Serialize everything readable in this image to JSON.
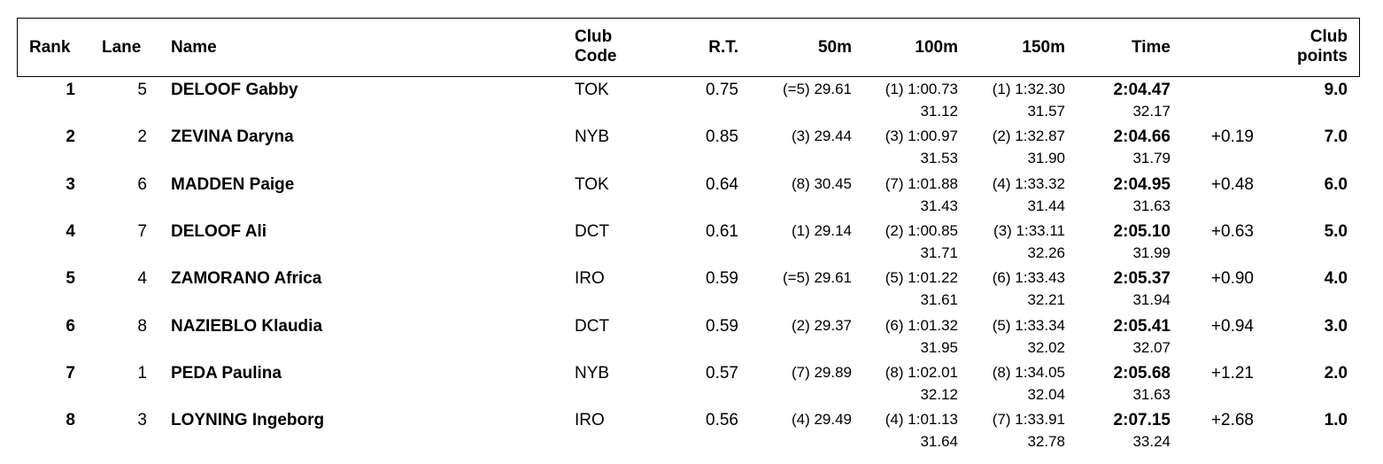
{
  "header": {
    "rank": "Rank",
    "lane": "Lane",
    "name": "Name",
    "club_code": [
      "Club",
      "Code"
    ],
    "rt": "R.T.",
    "s50": "50m",
    "s100": "100m",
    "s150": "150m",
    "time": "Time",
    "club_points": [
      "Club",
      "points"
    ]
  },
  "rows": [
    {
      "rank": "1",
      "lane": "5",
      "name": "DELOOF Gabby",
      "club": "TOK",
      "rt": "0.75",
      "s50": "(=5) 29.61",
      "s100": "(1) 1:00.73",
      "s100_split": "31.12",
      "s150": "(1) 1:32.30",
      "s150_split": "31.57",
      "time": "2:04.47",
      "time_split": "32.17",
      "behind": "",
      "points": "9.0"
    },
    {
      "rank": "2",
      "lane": "2",
      "name": "ZEVINA Daryna",
      "club": "NYB",
      "rt": "0.85",
      "s50": "(3) 29.44",
      "s100": "(3) 1:00.97",
      "s100_split": "31.53",
      "s150": "(2) 1:32.87",
      "s150_split": "31.90",
      "time": "2:04.66",
      "time_split": "31.79",
      "behind": "+0.19",
      "points": "7.0"
    },
    {
      "rank": "3",
      "lane": "6",
      "name": "MADDEN Paige",
      "club": "TOK",
      "rt": "0.64",
      "s50": "(8) 30.45",
      "s100": "(7) 1:01.88",
      "s100_split": "31.43",
      "s150": "(4) 1:33.32",
      "s150_split": "31.44",
      "time": "2:04.95",
      "time_split": "31.63",
      "behind": "+0.48",
      "points": "6.0"
    },
    {
      "rank": "4",
      "lane": "7",
      "name": "DELOOF Ali",
      "club": "DCT",
      "rt": "0.61",
      "s50": "(1) 29.14",
      "s100": "(2) 1:00.85",
      "s100_split": "31.71",
      "s150": "(3) 1:33.11",
      "s150_split": "32.26",
      "time": "2:05.10",
      "time_split": "31.99",
      "behind": "+0.63",
      "points": "5.0"
    },
    {
      "rank": "5",
      "lane": "4",
      "name": "ZAMORANO Africa",
      "club": "IRO",
      "rt": "0.59",
      "s50": "(=5) 29.61",
      "s100": "(5) 1:01.22",
      "s100_split": "31.61",
      "s150": "(6) 1:33.43",
      "s150_split": "32.21",
      "time": "2:05.37",
      "time_split": "31.94",
      "behind": "+0.90",
      "points": "4.0"
    },
    {
      "rank": "6",
      "lane": "8",
      "name": "NAZIEBLO Klaudia",
      "club": "DCT",
      "rt": "0.59",
      "s50": "(2) 29.37",
      "s100": "(6) 1:01.32",
      "s100_split": "31.95",
      "s150": "(5) 1:33.34",
      "s150_split": "32.02",
      "time": "2:05.41",
      "time_split": "32.07",
      "behind": "+0.94",
      "points": "3.0"
    },
    {
      "rank": "7",
      "lane": "1",
      "name": "PEDA Paulina",
      "club": "NYB",
      "rt": "0.57",
      "s50": "(7) 29.89",
      "s100": "(8) 1:02.01",
      "s100_split": "32.12",
      "s150": "(8) 1:34.05",
      "s150_split": "32.04",
      "time": "2:05.68",
      "time_split": "31.63",
      "behind": "+1.21",
      "points": "2.0"
    },
    {
      "rank": "8",
      "lane": "3",
      "name": "LOYNING Ingeborg",
      "club": "IRO",
      "rt": "0.56",
      "s50": "(4) 29.49",
      "s100": "(4) 1:01.13",
      "s100_split": "31.64",
      "s150": "(7) 1:33.91",
      "s150_split": "32.78",
      "time": "2:07.15",
      "time_split": "33.24",
      "behind": "+2.68",
      "points": "1.0"
    }
  ]
}
